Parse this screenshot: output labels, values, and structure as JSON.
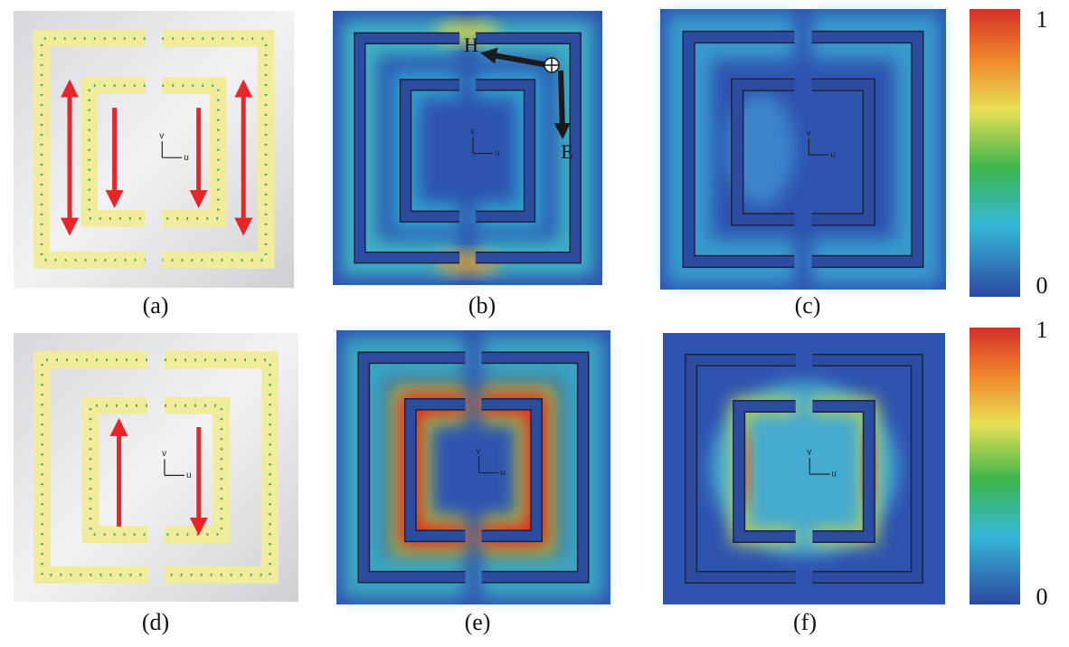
{
  "panels": [
    {
      "label": "(a)"
    },
    {
      "label": "(b)"
    },
    {
      "label": "(c)"
    },
    {
      "label": "(d)"
    },
    {
      "label": "(e)"
    },
    {
      "label": "(f)"
    }
  ],
  "annotations": {
    "h": "H",
    "e": "E"
  },
  "axis_labels": {
    "v": "v",
    "u": "u"
  },
  "colorbars": [
    {
      "max": "1",
      "min": "0"
    },
    {
      "max": "1",
      "min": "0"
    }
  ]
}
